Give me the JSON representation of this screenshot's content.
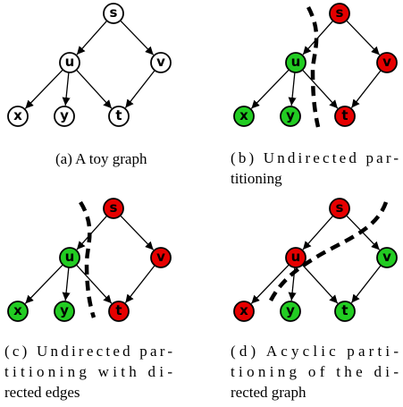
{
  "edges": [
    [
      "s",
      "u"
    ],
    [
      "s",
      "v"
    ],
    [
      "u",
      "x"
    ],
    [
      "u",
      "y"
    ],
    [
      "u",
      "t"
    ],
    [
      "v",
      "t"
    ]
  ],
  "panels": [
    {
      "caption": [
        "(a) A toy graph"
      ],
      "nodes": [
        {
          "label": "s",
          "color": "#ffffff"
        },
        {
          "label": "u",
          "color": "#ffffff"
        },
        {
          "label": "v",
          "color": "#ffffff"
        },
        {
          "label": "x",
          "color": "#ffffff"
        },
        {
          "label": "y",
          "color": "#ffffff"
        },
        {
          "label": "t",
          "color": "#ffffff"
        }
      ]
    },
    {
      "caption": [
        "(b) Undirected par-",
        "titioning"
      ],
      "nodes": [
        {
          "label": "s",
          "color": "#e60000"
        },
        {
          "label": "u",
          "color": "#22cc22"
        },
        {
          "label": "v",
          "color": "#e60000"
        },
        {
          "label": "x",
          "color": "#22cc22"
        },
        {
          "label": "y",
          "color": "#22cc22"
        },
        {
          "label": "t",
          "color": "#e60000"
        }
      ]
    },
    {
      "caption": [
        "(c) Undirected par-",
        "titioning with di-",
        "rected edges"
      ],
      "nodes": [
        {
          "label": "s",
          "color": "#e60000"
        },
        {
          "label": "u",
          "color": "#22cc22"
        },
        {
          "label": "v",
          "color": "#e60000"
        },
        {
          "label": "x",
          "color": "#22cc22"
        },
        {
          "label": "y",
          "color": "#22cc22"
        },
        {
          "label": "t",
          "color": "#e60000"
        }
      ]
    },
    {
      "caption": [
        "(d) Acyclic parti-",
        "tioning of the di-",
        "rected graph"
      ],
      "nodes": [
        {
          "label": "s",
          "color": "#e60000"
        },
        {
          "label": "u",
          "color": "#e60000"
        },
        {
          "label": "v",
          "color": "#22cc22"
        },
        {
          "label": "x",
          "color": "#e60000"
        },
        {
          "label": "y",
          "color": "#22cc22"
        },
        {
          "label": "t",
          "color": "#22cc22"
        }
      ]
    }
  ]
}
